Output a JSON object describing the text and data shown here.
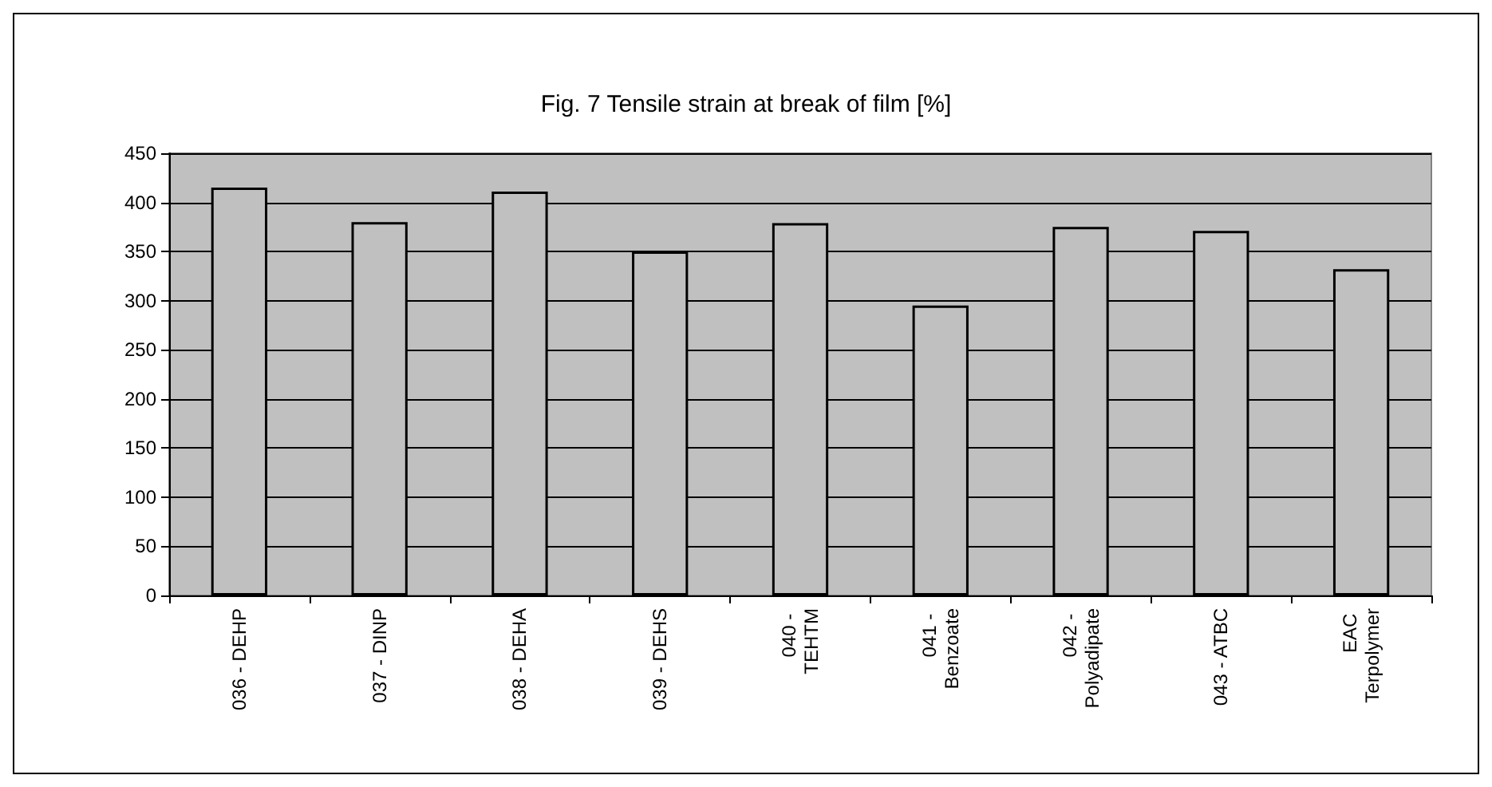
{
  "chart_data": {
    "type": "bar",
    "title": "Fig. 7 Tensile strain at break of film [%]",
    "categories": [
      "036 - DEHP",
      "037 - DINP",
      "038 - DEHA",
      "039 - DEHS",
      "040 - TEHTM",
      "041 - Benzoate",
      "042 - Polyadipate",
      "043 - ATBC",
      "EAC Terpolymer"
    ],
    "values": [
      415,
      380,
      411,
      350,
      379,
      295,
      375,
      371,
      332
    ],
    "color": "#c0c0c0",
    "ylim": [
      0,
      450
    ],
    "yticks": [
      0,
      50,
      100,
      150,
      200,
      250,
      300,
      350,
      400,
      450
    ],
    "grid": "y"
  }
}
